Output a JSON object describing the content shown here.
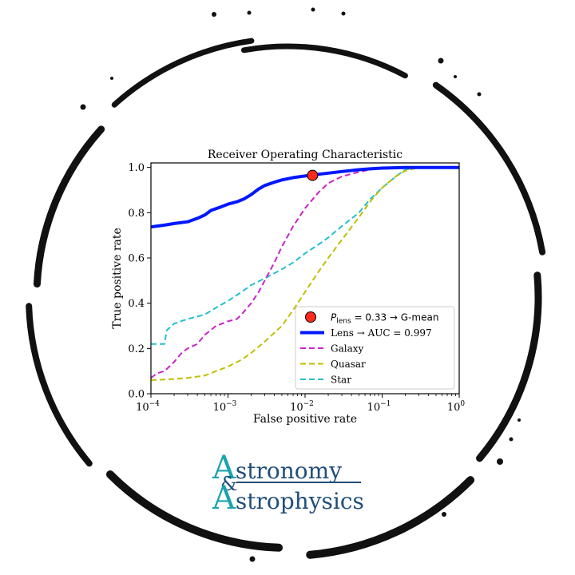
{
  "chart_data": {
    "type": "line",
    "title": "Receiver Operating Characteristic",
    "xlabel": "False positive rate",
    "ylabel": "True positive rate",
    "xscale": "log",
    "xlim": [
      0.0001,
      1
    ],
    "ylim": [
      0,
      1.02
    ],
    "xticks": [
      0.0001,
      0.001,
      0.01,
      0.1,
      1
    ],
    "xtick_labels": [
      [
        "10",
        "−4"
      ],
      [
        "10",
        "−3"
      ],
      [
        "10",
        "−2"
      ],
      [
        "10",
        "−1"
      ],
      [
        "10",
        "0"
      ]
    ],
    "yticks": [
      0.0,
      0.2,
      0.4,
      0.6,
      0.8,
      1.0
    ],
    "ytick_labels": [
      "0.0",
      "0.2",
      "0.4",
      "0.6",
      "0.8",
      "1.0"
    ],
    "grid": false,
    "legend_position": "lower-right",
    "marker": {
      "x": 0.0125,
      "y": 0.965,
      "color": "#ff2a1a",
      "label_prefix": "P",
      "label_sub": "lens",
      "label_suffix": " = 0.33 → G-mean"
    },
    "series": [
      {
        "name": "Lens → AUC = 0.997",
        "color": "#0018ff",
        "style": "solid",
        "width": 4,
        "x": [
          0.0001,
          0.00015,
          0.0002,
          0.0003,
          0.0004,
          0.0005,
          0.0006,
          0.0008,
          0.001,
          0.0013,
          0.0016,
          0.002,
          0.0025,
          0.003,
          0.004,
          0.005,
          0.007,
          0.01,
          0.015,
          0.02,
          0.03,
          0.05,
          0.07,
          0.1,
          0.2,
          0.3,
          1
        ],
        "y": [
          0.737,
          0.745,
          0.752,
          0.76,
          0.775,
          0.79,
          0.81,
          0.825,
          0.838,
          0.848,
          0.86,
          0.88,
          0.905,
          0.92,
          0.935,
          0.945,
          0.955,
          0.962,
          0.97,
          0.975,
          0.982,
          0.99,
          0.994,
          0.997,
          1.0,
          1.0,
          1.0
        ]
      },
      {
        "name": "Galaxy",
        "color": "#cc22cc",
        "style": "dashed",
        "width": 2,
        "x": [
          0.0001,
          0.00012,
          0.00015,
          0.0002,
          0.00025,
          0.0003,
          0.0004,
          0.0005,
          0.0007,
          0.001,
          0.0013,
          0.0015,
          0.002,
          0.0025,
          0.003,
          0.004,
          0.005,
          0.007,
          0.01,
          0.015,
          0.02,
          0.03,
          0.05,
          0.07,
          0.1
        ],
        "y": [
          0.07,
          0.09,
          0.1,
          0.14,
          0.18,
          0.2,
          0.22,
          0.26,
          0.3,
          0.32,
          0.33,
          0.35,
          0.4,
          0.45,
          0.5,
          0.58,
          0.65,
          0.74,
          0.82,
          0.89,
          0.93,
          0.96,
          0.98,
          0.99,
          1.0
        ]
      },
      {
        "name": "Quasar",
        "color": "#bfbf00",
        "style": "dashed",
        "width": 2,
        "x": [
          0.0001,
          0.0002,
          0.0003,
          0.0005,
          0.0007,
          0.001,
          0.0015,
          0.002,
          0.003,
          0.005,
          0.007,
          0.01,
          0.015,
          0.02,
          0.03,
          0.05,
          0.07,
          0.1,
          0.15,
          0.2,
          0.3
        ],
        "y": [
          0.06,
          0.065,
          0.07,
          0.08,
          0.1,
          0.12,
          0.15,
          0.18,
          0.23,
          0.3,
          0.37,
          0.45,
          0.54,
          0.6,
          0.68,
          0.78,
          0.85,
          0.91,
          0.96,
          0.985,
          1.0
        ]
      },
      {
        "name": "Star",
        "color": "#22bfcf",
        "style": "dashed",
        "width": 2,
        "x": [
          0.0001,
          0.00015,
          0.00016,
          0.0002,
          0.0003,
          0.0005,
          0.0007,
          0.001,
          0.0015,
          0.002,
          0.003,
          0.005,
          0.007,
          0.01,
          0.015,
          0.02,
          0.03,
          0.05,
          0.07,
          0.1,
          0.15,
          0.2,
          0.3
        ],
        "y": [
          0.22,
          0.22,
          0.28,
          0.31,
          0.33,
          0.35,
          0.38,
          0.41,
          0.45,
          0.48,
          0.51,
          0.55,
          0.58,
          0.62,
          0.66,
          0.69,
          0.74,
          0.8,
          0.86,
          0.91,
          0.96,
          0.99,
          1.0
        ]
      }
    ]
  },
  "logo": {
    "line1_initial": "A",
    "line1_rest": "stronomy",
    "ampersand": "&",
    "line2_initial": "A",
    "line2_rest": "strophysics"
  }
}
